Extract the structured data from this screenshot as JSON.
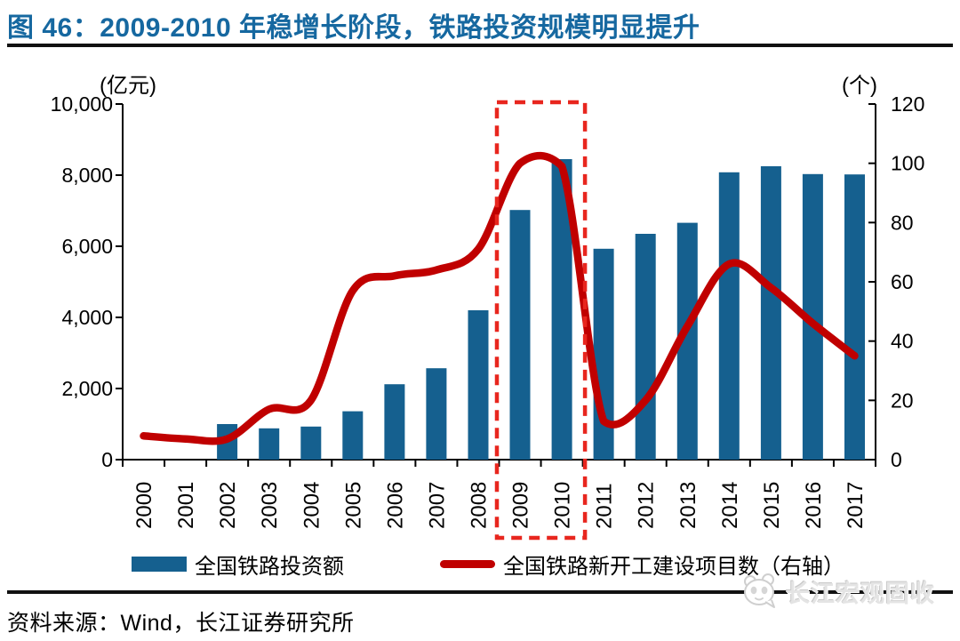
{
  "title": "图 46：2009-2010 年稳增长阶段，铁路投资规模明显提升",
  "source_note": "资料来源：Wind，长江证券研究所",
  "watermark": {
    "text": "长江宏观固收",
    "icon": "panda-logo"
  },
  "colors": {
    "title_blue": "#1668A0",
    "bar_blue": "#15608F",
    "line_red": "#C00000",
    "highlight_red": "#E8261E",
    "axis_black": "#000000",
    "rule_black": "#111111",
    "watermark_gray": "#E4E4E4"
  },
  "legend": [
    {
      "label": "全国铁路投资额",
      "type": "bar",
      "color": "#15608F"
    },
    {
      "label": "全国铁路新开工建设项目数（右轴）",
      "type": "line",
      "color": "#C00000"
    }
  ],
  "chart_data": {
    "type": "bar+line",
    "categories": [
      "2000",
      "2001",
      "2002",
      "2003",
      "2004",
      "2005",
      "2006",
      "2007",
      "2008",
      "2009",
      "2010",
      "2011",
      "2012",
      "2013",
      "2014",
      "2015",
      "2016",
      "2017"
    ],
    "series": [
      {
        "name": "全国铁路投资额",
        "type": "bar",
        "axis": "left",
        "unit": "亿元",
        "color": "#15608F",
        "values": [
          null,
          null,
          1000,
          880,
          930,
          1360,
          2120,
          2570,
          4200,
          7020,
          8450,
          5930,
          6350,
          6660,
          8080,
          8250,
          8030,
          8020
        ]
      },
      {
        "name": "全国铁路新开工建设项目数（右轴）",
        "type": "line",
        "axis": "right",
        "unit": "个",
        "color": "#C00000",
        "values": [
          8,
          7,
          7,
          17,
          20,
          57,
          62,
          64,
          71,
          100,
          99,
          13,
          20,
          45,
          66,
          58,
          46,
          35
        ]
      }
    ],
    "left_axis": {
      "title": "(亿元)",
      "min": 0,
      "max": 10000,
      "tick_step": 2000,
      "tick_labels": [
        "0",
        "2,000",
        "4,000",
        "6,000",
        "8,000",
        "10,000"
      ]
    },
    "right_axis": {
      "title": "(个)",
      "min": 0,
      "max": 120,
      "tick_step": 20,
      "tick_labels": [
        "0",
        "20",
        "40",
        "60",
        "80",
        "100",
        "120"
      ]
    },
    "highlight_box": {
      "from_category": "2009",
      "to_category": "2010",
      "style": "dashed",
      "color": "#E8261E"
    },
    "grid": false,
    "legend_position": "bottom"
  }
}
